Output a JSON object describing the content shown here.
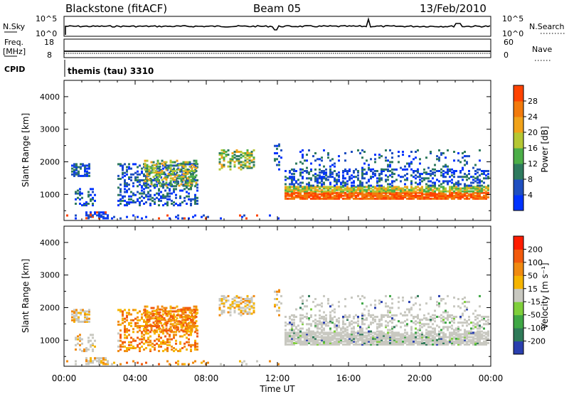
{
  "header": {
    "station": "Blackstone (fitACF)",
    "beam": "Beam 05",
    "date": "13/Feb/2010"
  },
  "top_panels": {
    "nsky_label": "N.Sky",
    "nsky_ticks": [
      "10^5",
      "10^0"
    ],
    "nsearch_label": "N.Search",
    "nsearch_ticks": [
      "10^5",
      "10^0"
    ],
    "freq_label_1": "Freq.",
    "freq_label_2": "[MHz]",
    "freq_ticks": [
      "18",
      "8"
    ],
    "nave_label": "Nave",
    "nave_ticks": [
      "60",
      "0"
    ],
    "cpid_label": "CPID",
    "cpid_value": "themis (tau) 3310"
  },
  "colors": {
    "power_scale": [
      "#0033ff",
      "#1f4fc0",
      "#2e7a5e",
      "#4cae48",
      "#b5c733",
      "#f0a21a",
      "#f27a0c",
      "#ff4300",
      "#ff0000"
    ],
    "velocity_scale": [
      "#2a3fae",
      "#2f7a58",
      "#3fa745",
      "#7fcf3b",
      "#c8c8c0",
      "#f5b400",
      "#f08a10",
      "#f25a0c",
      "#ff1d00"
    ]
  },
  "chart_data": [
    {
      "type": "heatmap",
      "name": "power",
      "ylabel": "Slant Range [km]",
      "yticks": [
        "1000",
        "2000",
        "3000",
        "4000"
      ],
      "ylim": [
        200,
        4500
      ],
      "xlim": [
        0,
        24
      ],
      "colorbar_label": "Power [dB]",
      "colorbar_ticks": [
        "4",
        "8",
        "12",
        "16",
        "20",
        "24",
        "28"
      ],
      "colorbar_range": [
        0,
        32
      ]
    },
    {
      "type": "heatmap",
      "name": "velocity",
      "ylabel": "Slant Range [km]",
      "yticks": [
        "1000",
        "2000",
        "3000",
        "4000"
      ],
      "ylim": [
        200,
        4500
      ],
      "xlim": [
        0,
        24
      ],
      "colorbar_label": "Velocity [m s⁻¹]",
      "colorbar_ticks": [
        "200",
        "100",
        "50",
        "15",
        "-15",
        "-50",
        "-100",
        "-200"
      ],
      "xticks": [
        "00:00",
        "04:00",
        "08:00",
        "12:00",
        "16:00",
        "20:00",
        "00:00"
      ],
      "xlabel": "Time UT"
    }
  ]
}
